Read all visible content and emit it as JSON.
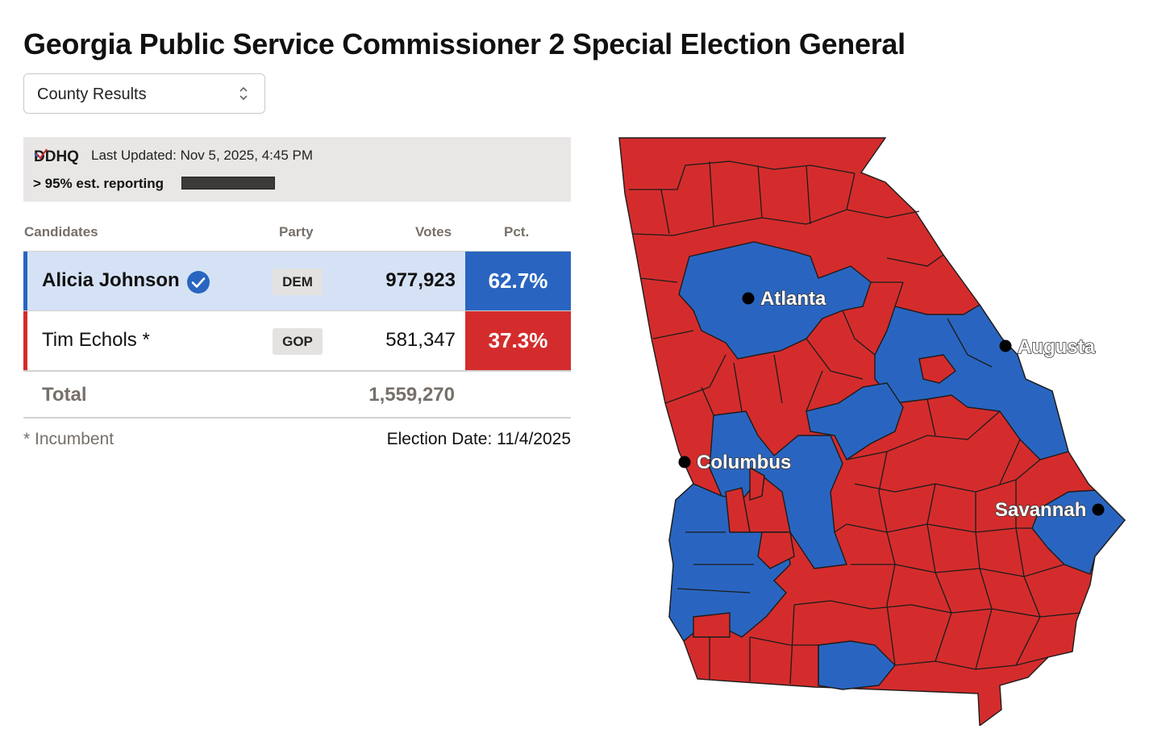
{
  "title": "Georgia Public Service Commissioner 2 Special Election General",
  "view_select": {
    "selected": "County Results"
  },
  "info": {
    "logo_text": "DDHQ",
    "last_updated": "Last Updated: Nov 5, 2025, 4:45 PM",
    "reporting": "> 95% est. reporting",
    "reporting_fraction": 0.95
  },
  "table": {
    "headers": {
      "candidates": "Candidates",
      "party": "Party",
      "votes": "Votes",
      "pct": "Pct."
    },
    "rows": [
      {
        "name": "Alicia Johnson",
        "party": "DEM",
        "votes": "977,923",
        "pct": "62.7%",
        "winner": true,
        "color": "#2965c0",
        "row_bg": "#d5e2f5"
      },
      {
        "name": "Tim Echols *",
        "party": "GOP",
        "votes": "581,347",
        "pct": "37.3%",
        "winner": false,
        "color": "#d42c2c",
        "row_bg": "#ffffff"
      }
    ],
    "total": {
      "label": "Total",
      "votes": "1,559,270"
    }
  },
  "footer": {
    "incumbent_note": "* Incumbent",
    "election_date": "Election Date: 11/4/2025"
  },
  "map": {
    "colors": {
      "dem": "#2965c0",
      "gop": "#d42c2c"
    },
    "cities": [
      "Atlanta",
      "Augusta",
      "Columbus",
      "Savannah"
    ]
  }
}
